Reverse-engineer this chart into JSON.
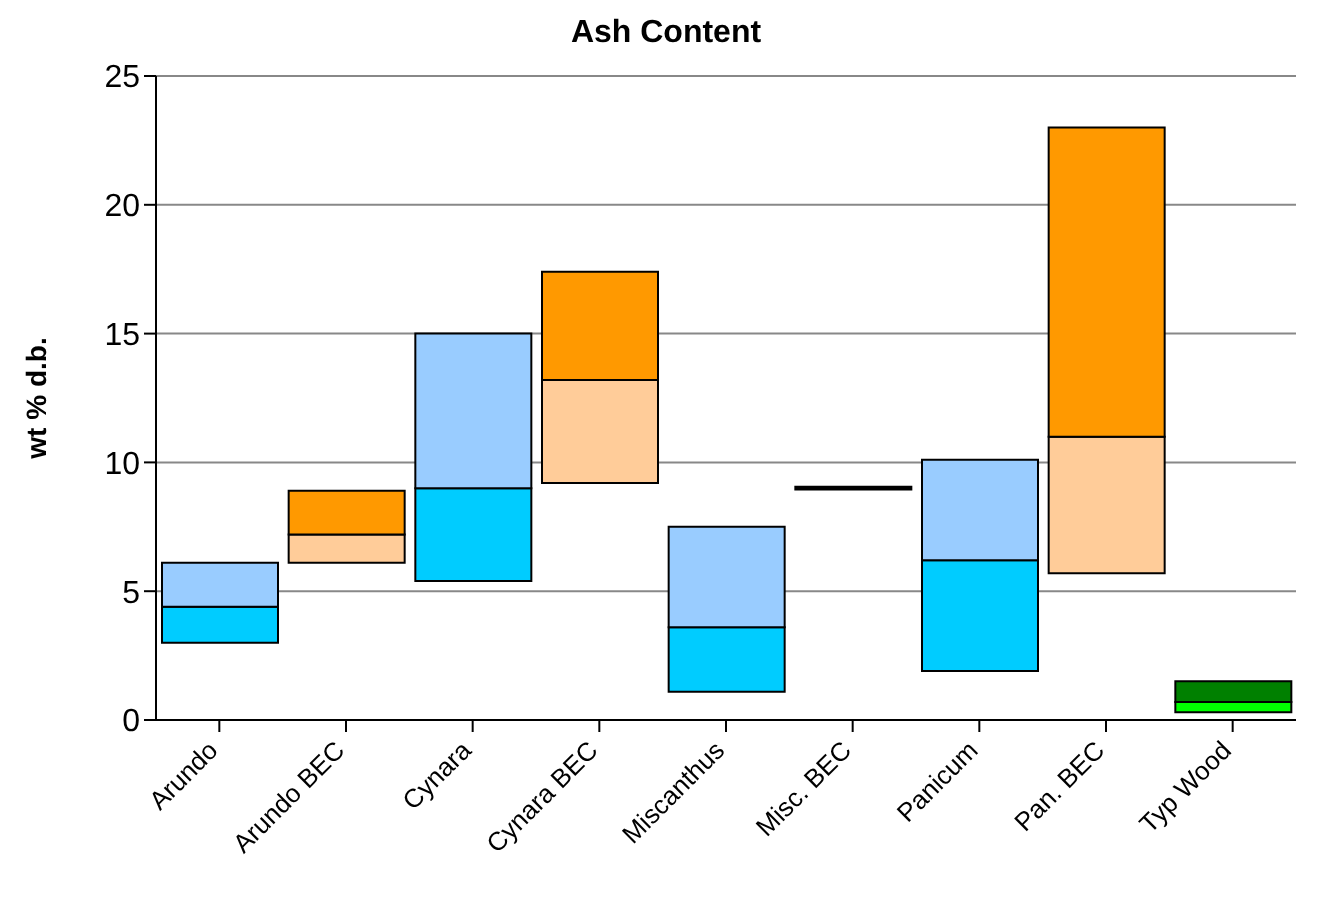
{
  "chart_data": {
    "type": "bar",
    "title": "Ash Content",
    "ylabel": "wt % d.b.",
    "categories": [
      "Arundo",
      "Arundo BEC",
      "Cynara",
      "Cynara BEC",
      "Miscanthus",
      "Misc. BEC",
      "Panicum",
      "Pan. BEC",
      "Typ Wood"
    ],
    "series": [
      {
        "base": [
          3.0,
          6.1,
          5.4,
          9.2,
          1.1,
          8.95,
          1.9,
          5.7,
          0.3
        ],
        "values": [
          1.4,
          1.1,
          3.6,
          4.0,
          2.5,
          0.1,
          4.3,
          5.3,
          0.4
        ],
        "colors": [
          "#00ccff",
          "#ffcc99",
          "#00ccff",
          "#ffcc99",
          "#00ccff",
          "#000000",
          "#00ccff",
          "#ffcc99",
          "#00ff00"
        ]
      },
      {
        "base": [
          4.4,
          7.2,
          9.0,
          13.2,
          3.6,
          null,
          6.2,
          11.0,
          0.7
        ],
        "values": [
          1.7,
          1.7,
          6.0,
          4.2,
          3.9,
          null,
          3.9,
          12.0,
          0.8
        ],
        "colors": [
          "#99ccff",
          "#ff9900",
          "#99ccff",
          "#ff9900",
          "#99ccff",
          "#000000",
          "#99ccff",
          "#ff9900",
          "#008000"
        ]
      }
    ],
    "ylim": [
      0,
      25
    ],
    "yticks": [
      0,
      5,
      10,
      15,
      20,
      25
    ],
    "grid": "y",
    "legend": false
  }
}
